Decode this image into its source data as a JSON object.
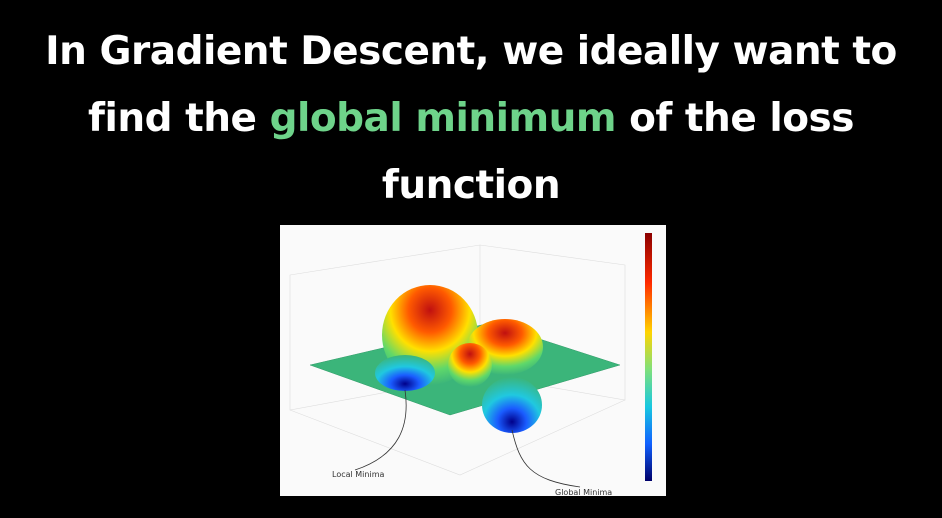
{
  "slide": {
    "title": {
      "line_1": "In Gradient Descent, we ideally want to",
      "line_2_before": "find the",
      "highlight": "global minimum",
      "line_2_after": "of the loss",
      "line_3": "function"
    },
    "figure": {
      "local_label": "Local Minima",
      "global_label": "Global Minima"
    }
  }
}
